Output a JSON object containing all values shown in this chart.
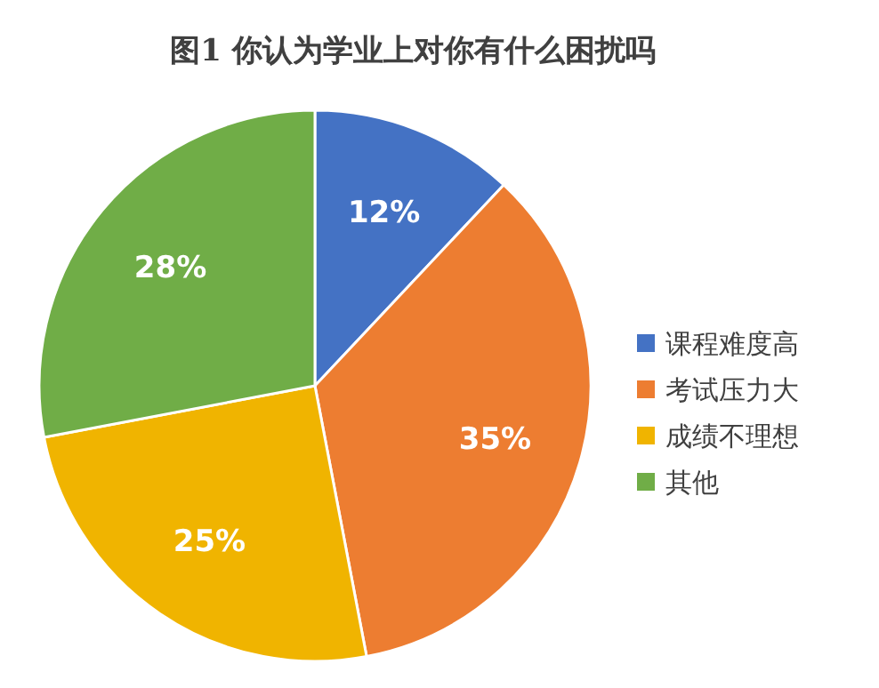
{
  "chart_data": {
    "type": "pie",
    "title": "图1 你认为学业上对你有什么困扰吗",
    "categories": [
      "课程难度高",
      "考试压力大",
      "成绩不理想",
      "其他"
    ],
    "values": [
      12,
      35,
      25,
      28
    ],
    "colors": [
      "#4472c4",
      "#ed7d31",
      "#f0b400",
      "#70ad47"
    ],
    "value_labels": [
      "12%",
      "35%",
      "25%",
      "28%"
    ],
    "legend": "right"
  }
}
